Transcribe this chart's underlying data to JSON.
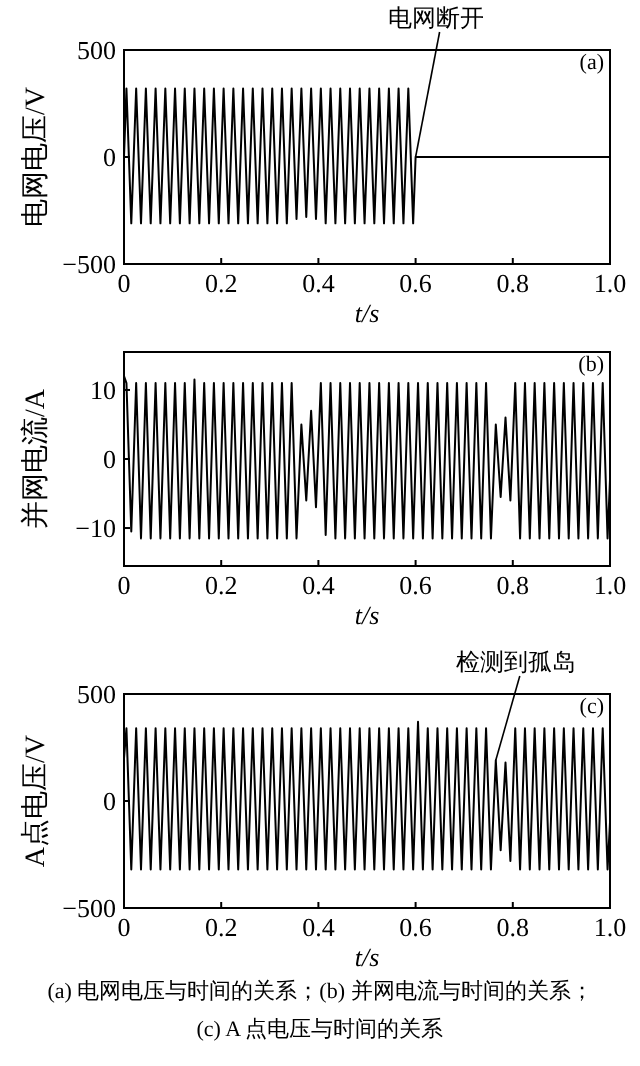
{
  "chart_data": [
    {
      "type": "line",
      "xlabel": "t/s",
      "ylabel": "电网电压/V",
      "xlim": [
        0,
        1
      ],
      "xticks": [
        {
          "value": 0,
          "label": "0"
        },
        {
          "value": 0.2,
          "label": "0.2"
        },
        {
          "value": 0.4,
          "label": "0.4"
        },
        {
          "value": 0.6,
          "label": "0.6"
        },
        {
          "value": 0.8,
          "label": "0.8"
        },
        {
          "value": 1,
          "label": "1.0"
        }
      ],
      "ylim": [
        -500,
        500
      ],
      "yticks": [
        -500,
        0,
        500
      ],
      "grid": false,
      "annotations": [
        "(a)",
        {
          "text": "电网断开",
          "x": 0.6,
          "y": 0
        }
      ],
      "series": [
        {
          "color": "#000000",
          "x": [
            0,
            0.005,
            0.015,
            0.025,
            0.035,
            0.045,
            0.055,
            0.065,
            0.075,
            0.085,
            0.095,
            0.105,
            0.115,
            0.125,
            0.135,
            0.145,
            0.155,
            0.165,
            0.175,
            0.185,
            0.195,
            0.205,
            0.215,
            0.225,
            0.235,
            0.245,
            0.255,
            0.265,
            0.275,
            0.285,
            0.295,
            0.305,
            0.315,
            0.325,
            0.335,
            0.345,
            0.355,
            0.365,
            0.375,
            0.385,
            0.395,
            0.405,
            0.415,
            0.425,
            0.435,
            0.445,
            0.455,
            0.465,
            0.475,
            0.485,
            0.495,
            0.505,
            0.515,
            0.525,
            0.535,
            0.545,
            0.555,
            0.565,
            0.575,
            0.585,
            0.595,
            0.6,
            1.0
          ],
          "values": [
            0,
            320,
            -310,
            320,
            -310,
            320,
            -310,
            320,
            -310,
            320,
            -310,
            320,
            -310,
            320,
            -310,
            320,
            -310,
            320,
            -310,
            320,
            -310,
            320,
            -310,
            320,
            -310,
            320,
            -310,
            320,
            -310,
            320,
            -310,
            320,
            -310,
            320,
            -310,
            320,
            -290,
            320,
            -280,
            320,
            -290,
            320,
            -310,
            320,
            -310,
            320,
            -310,
            320,
            -310,
            320,
            -310,
            320,
            -310,
            320,
            -310,
            320,
            -310,
            320,
            -310,
            320,
            -310,
            0,
            0
          ]
        }
      ]
    },
    {
      "type": "line",
      "xlabel": "t/s",
      "ylabel": "并网电流/A",
      "xlim": [
        0,
        1
      ],
      "xticks": [
        {
          "value": 0,
          "label": "0"
        },
        {
          "value": 0.2,
          "label": "0.2"
        },
        {
          "value": 0.4,
          "label": "0.4"
        },
        {
          "value": 0.6,
          "label": "0.6"
        },
        {
          "value": 0.8,
          "label": "0.8"
        },
        {
          "value": 1,
          "label": "1.0"
        }
      ],
      "ylim": [
        -15.5,
        15.5
      ],
      "yticks": [
        -10,
        0,
        10
      ],
      "grid": false,
      "annotations": [
        "(b)"
      ],
      "series": [
        {
          "color": "#000000",
          "x": [
            0,
            0.005,
            0.015,
            0.025,
            0.035,
            0.045,
            0.055,
            0.065,
            0.075,
            0.085,
            0.095,
            0.105,
            0.115,
            0.125,
            0.135,
            0.145,
            0.155,
            0.165,
            0.175,
            0.185,
            0.195,
            0.205,
            0.215,
            0.225,
            0.235,
            0.245,
            0.255,
            0.265,
            0.275,
            0.285,
            0.295,
            0.305,
            0.315,
            0.325,
            0.335,
            0.345,
            0.355,
            0.365,
            0.375,
            0.385,
            0.395,
            0.405,
            0.415,
            0.425,
            0.435,
            0.445,
            0.455,
            0.465,
            0.475,
            0.485,
            0.495,
            0.505,
            0.515,
            0.525,
            0.535,
            0.545,
            0.555,
            0.565,
            0.575,
            0.585,
            0.595,
            0.605,
            0.615,
            0.625,
            0.635,
            0.645,
            0.655,
            0.665,
            0.675,
            0.685,
            0.695,
            0.705,
            0.715,
            0.725,
            0.735,
            0.745,
            0.755,
            0.765,
            0.775,
            0.785,
            0.795,
            0.805,
            0.815,
            0.825,
            0.835,
            0.845,
            0.855,
            0.865,
            0.875,
            0.885,
            0.895,
            0.905,
            0.915,
            0.925,
            0.935,
            0.945,
            0.955,
            0.965,
            0.975,
            0.985,
            0.995,
            1.0
          ],
          "values": [
            12,
            11,
            -10.5,
            11,
            -11.5,
            11,
            -11.5,
            11,
            -11.5,
            11,
            -11.5,
            11,
            -11.5,
            11,
            -11.5,
            11.5,
            -11.5,
            11,
            -11.5,
            11,
            -11.5,
            11,
            -11.5,
            11,
            -11.5,
            11,
            -11.5,
            11,
            -11.5,
            11,
            -11.5,
            11,
            -11.5,
            11,
            -11.5,
            11,
            -11.5,
            5,
            -6,
            7,
            -7,
            11,
            -11,
            11,
            -11.5,
            11,
            -11.5,
            11,
            -11.5,
            11,
            -11.5,
            11,
            -11.5,
            11,
            -11.5,
            11,
            -11.5,
            11,
            -11.5,
            11,
            -11.5,
            11,
            -11.5,
            11,
            -11.5,
            11,
            -11.5,
            11,
            -11.5,
            11,
            -11.5,
            11,
            -11.5,
            11,
            -11.5,
            11,
            -11.5,
            5,
            -5.5,
            6,
            -6,
            11,
            -11.5,
            11,
            -11.5,
            11,
            -11.5,
            11,
            -11.5,
            11,
            -11.5,
            11,
            -11.5,
            11,
            -11.5,
            11,
            -11.5,
            11,
            -11.5,
            11,
            -11.5,
            -3
          ]
        }
      ]
    },
    {
      "type": "line",
      "xlabel": "t/s",
      "ylabel": "A点电压/V",
      "xlim": [
        0,
        1
      ],
      "xticks": [
        {
          "value": 0,
          "label": "0"
        },
        {
          "value": 0.2,
          "label": "0.2"
        },
        {
          "value": 0.4,
          "label": "0.4"
        },
        {
          "value": 0.6,
          "label": "0.6"
        },
        {
          "value": 0.8,
          "label": "0.8"
        },
        {
          "value": 1,
          "label": "1.0"
        }
      ],
      "ylim": [
        -500,
        500
      ],
      "yticks": [
        -500,
        0,
        500
      ],
      "grid": false,
      "annotations": [
        "(c)",
        {
          "text": "检测到孤岛",
          "x": 0.765,
          "y": 190
        },
        "(a) 电网电压与时间的关系；(b) 并网电流与时间的关系；",
        "(c) A 点电压与时间的关系"
      ],
      "series": [
        {
          "color": "#000000",
          "x": [
            0,
            0.005,
            0.015,
            0.025,
            0.035,
            0.045,
            0.055,
            0.065,
            0.075,
            0.085,
            0.095,
            0.105,
            0.115,
            0.125,
            0.135,
            0.145,
            0.155,
            0.165,
            0.175,
            0.185,
            0.195,
            0.205,
            0.215,
            0.225,
            0.235,
            0.245,
            0.255,
            0.265,
            0.275,
            0.285,
            0.295,
            0.305,
            0.315,
            0.325,
            0.335,
            0.345,
            0.355,
            0.365,
            0.375,
            0.385,
            0.395,
            0.405,
            0.415,
            0.425,
            0.435,
            0.445,
            0.455,
            0.465,
            0.475,
            0.485,
            0.495,
            0.505,
            0.515,
            0.525,
            0.535,
            0.545,
            0.555,
            0.565,
            0.575,
            0.585,
            0.595,
            0.605,
            0.615,
            0.625,
            0.635,
            0.645,
            0.655,
            0.665,
            0.675,
            0.685,
            0.695,
            0.705,
            0.715,
            0.725,
            0.735,
            0.745,
            0.755,
            0.765,
            0.775,
            0.785,
            0.795,
            0.805,
            0.815,
            0.825,
            0.835,
            0.845,
            0.855,
            0.865,
            0.875,
            0.885,
            0.895,
            0.905,
            0.915,
            0.925,
            0.935,
            0.945,
            0.955,
            0.965,
            0.975,
            0.985,
            0.995,
            1.0
          ],
          "values": [
            200,
            340,
            -320,
            340,
            -320,
            340,
            -320,
            340,
            -320,
            340,
            -320,
            340,
            -320,
            340,
            -320,
            340,
            -320,
            340,
            -320,
            340,
            -320,
            340,
            -320,
            340,
            -320,
            340,
            -320,
            340,
            -320,
            340,
            -320,
            340,
            -320,
            340,
            -320,
            340,
            -320,
            340,
            -320,
            340,
            -320,
            340,
            -320,
            340,
            -320,
            340,
            -320,
            340,
            -320,
            340,
            -320,
            340,
            -320,
            340,
            -320,
            340,
            -320,
            340,
            -320,
            340,
            -320,
            370,
            -320,
            340,
            -320,
            340,
            -320,
            340,
            -320,
            340,
            -320,
            340,
            -320,
            340,
            -320,
            340,
            -320,
            190,
            -230,
            180,
            -280,
            340,
            -320,
            340,
            -320,
            340,
            -320,
            340,
            -320,
            340,
            -320,
            340,
            -320,
            340,
            -320,
            340,
            -320,
            340,
            -320,
            340,
            -320,
            -100
          ]
        }
      ]
    }
  ]
}
